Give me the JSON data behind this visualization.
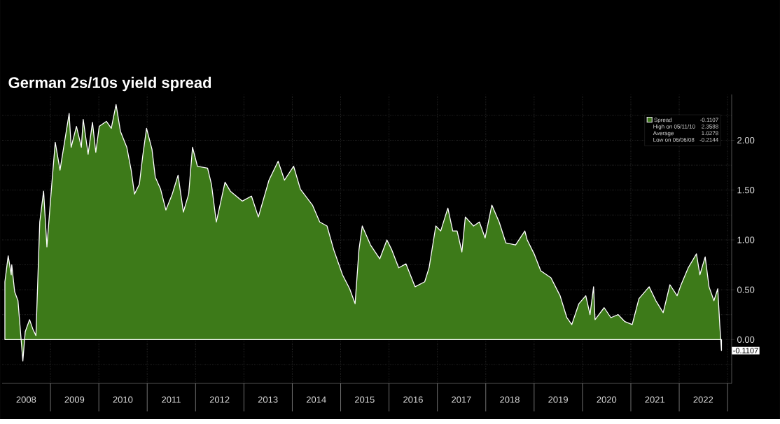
{
  "chart_data": {
    "type": "area",
    "title": "German 2s/10s yield spread",
    "series": [
      {
        "name": "Spread",
        "color": "#3d7a19",
        "x": [
          "2008-01-22",
          "2008-02-16",
          "2008-03-10",
          "2008-03-14",
          "2008-04-05",
          "2008-04-30",
          "2008-06-06",
          "2008-06-24",
          "2008-07-27",
          "2008-08-22",
          "2008-09-13",
          "2008-10-12",
          "2008-11-10",
          "2008-12-05",
          "2009-01-11",
          "2009-02-06",
          "2009-03-14",
          "2009-05-22",
          "2009-06-06",
          "2009-07-16",
          "2009-08-22",
          "2009-09-05",
          "2009-10-12",
          "2009-11-14",
          "2009-12-09",
          "2010-01-04",
          "2010-02-27",
          "2010-04-05",
          "2010-05-11",
          "2010-06-13",
          "2010-07-31",
          "2010-09-02",
          "2010-09-27",
          "2010-11-03",
          "2010-11-28",
          "2010-12-27",
          "2011-02-06",
          "2011-03-03",
          "2011-04-12",
          "2011-05-22",
          "2011-07-09",
          "2011-08-22",
          "2011-10-01",
          "2011-11-10",
          "2011-12-09",
          "2012-01-15",
          "2012-04-01",
          "2012-04-30",
          "2012-06-06",
          "2012-08-11",
          "2012-09-20",
          "2012-12-20",
          "2013-02-27",
          "2013-04-20",
          "2013-07-09",
          "2013-09-16",
          "2013-11-03",
          "2014-01-11",
          "2014-03-03",
          "2014-06-02",
          "2014-07-27",
          "2014-09-20",
          "2014-11-10",
          "2015-01-15",
          "2015-03-10",
          "2015-04-20",
          "2015-05-19",
          "2015-06-13",
          "2015-08-14",
          "2015-10-23",
          "2015-12-16",
          "2016-01-22",
          "2016-03-14",
          "2016-05-08",
          "2016-07-16",
          "2016-09-27",
          "2016-10-30",
          "2016-12-20",
          "2017-01-26",
          "2017-03-21",
          "2017-04-27",
          "2017-05-30",
          "2017-07-05",
          "2017-07-31",
          "2017-10-01",
          "2017-11-14",
          "2017-12-27",
          "2018-02-16",
          "2018-04-12",
          "2018-06-02",
          "2018-08-14",
          "2018-10-23",
          "2018-11-10",
          "2019-01-01",
          "2019-02-20",
          "2019-05-08",
          "2019-07-16",
          "2019-09-05",
          "2019-10-12",
          "2019-12-05",
          "2020-01-26",
          "2020-02-27",
          "2020-03-25",
          "2020-04-05",
          "2020-06-13",
          "2020-08-03",
          "2020-09-27",
          "2020-11-17",
          "2021-01-11",
          "2021-03-03",
          "2021-05-19",
          "2021-07-09",
          "2021-09-02",
          "2021-10-23",
          "2021-12-16",
          "2022-01-15",
          "2022-03-10",
          "2022-05-11",
          "2022-06-06",
          "2022-07-16",
          "2022-08-14",
          "2022-09-20",
          "2022-10-19",
          "2022-11-03",
          "2022-11-16"
        ],
        "values": [
          0.58,
          0.84,
          0.65,
          0.75,
          0.48,
          0.39,
          -0.2144,
          0.08,
          0.2,
          0.1,
          0.04,
          1.18,
          1.49,
          0.93,
          1.56,
          1.98,
          1.7,
          2.27,
          1.93,
          2.14,
          1.93,
          2.21,
          1.86,
          2.18,
          1.88,
          2.14,
          2.19,
          2.12,
          2.3588,
          2.09,
          1.93,
          1.7,
          1.46,
          1.56,
          1.84,
          2.12,
          1.91,
          1.63,
          1.51,
          1.3,
          1.46,
          1.65,
          1.28,
          1.46,
          1.93,
          1.74,
          1.72,
          1.56,
          1.18,
          1.58,
          1.49,
          1.39,
          1.44,
          1.23,
          1.6,
          1.79,
          1.6,
          1.74,
          1.51,
          1.35,
          1.18,
          1.14,
          0.9,
          0.65,
          0.51,
          0.36,
          0.9,
          1.14,
          0.95,
          0.81,
          1.0,
          0.9,
          0.72,
          0.76,
          0.53,
          0.58,
          0.72,
          1.14,
          1.09,
          1.32,
          1.09,
          1.09,
          0.88,
          1.23,
          1.14,
          1.18,
          1.02,
          1.35,
          1.18,
          0.97,
          0.95,
          1.09,
          1.0,
          0.86,
          0.69,
          0.62,
          0.44,
          0.22,
          0.15,
          0.36,
          0.44,
          0.25,
          0.53,
          0.2,
          0.32,
          0.22,
          0.25,
          0.18,
          0.15,
          0.41,
          0.53,
          0.39,
          0.27,
          0.55,
          0.44,
          0.55,
          0.72,
          0.86,
          0.65,
          0.83,
          0.53,
          0.39,
          0.51,
          0.15,
          -0.1107
        ]
      }
    ],
    "xlim": [
      "2008-01-01",
      "2023-02-01"
    ],
    "xticks": [
      {
        "value": "2008-07-01",
        "label": "2008"
      },
      {
        "value": "2009-01-01",
        "label": null
      },
      {
        "value": "2009-07-01",
        "label": "2009"
      },
      {
        "value": "2010-01-01",
        "label": null
      },
      {
        "value": "2010-07-01",
        "label": "2010"
      },
      {
        "value": "2011-01-01",
        "label": null
      },
      {
        "value": "2011-07-01",
        "label": "2011"
      },
      {
        "value": "2012-01-01",
        "label": null
      },
      {
        "value": "2012-07-01",
        "label": "2012"
      },
      {
        "value": "2013-01-01",
        "label": null
      },
      {
        "value": "2013-07-01",
        "label": "2013"
      },
      {
        "value": "2014-01-01",
        "label": null
      },
      {
        "value": "2014-07-01",
        "label": "2014"
      },
      {
        "value": "2015-01-01",
        "label": null
      },
      {
        "value": "2015-07-01",
        "label": "2015"
      },
      {
        "value": "2016-01-01",
        "label": null
      },
      {
        "value": "2016-07-01",
        "label": "2016"
      },
      {
        "value": "2017-01-01",
        "label": null
      },
      {
        "value": "2017-07-01",
        "label": "2017"
      },
      {
        "value": "2018-01-01",
        "label": null
      },
      {
        "value": "2018-07-01",
        "label": "2018"
      },
      {
        "value": "2019-01-01",
        "label": null
      },
      {
        "value": "2019-07-01",
        "label": "2019"
      },
      {
        "value": "2020-01-01",
        "label": null
      },
      {
        "value": "2020-07-01",
        "label": "2020"
      },
      {
        "value": "2021-01-01",
        "label": null
      },
      {
        "value": "2021-07-01",
        "label": "2021"
      },
      {
        "value": "2022-01-01",
        "label": null
      },
      {
        "value": "2022-07-01",
        "label": "2022"
      },
      {
        "value": "2023-01-01",
        "label": null
      }
    ],
    "ylim": [
      -0.44,
      2.46
    ],
    "yticks": [
      {
        "value": -0.25,
        "label": null
      },
      {
        "value": 0,
        "label": "0.00"
      },
      {
        "value": 0.25,
        "label": null
      },
      {
        "value": 0.5,
        "label": "0.50"
      },
      {
        "value": 0.75,
        "label": null
      },
      {
        "value": 1,
        "label": "1.00"
      },
      {
        "value": 1.25,
        "label": null
      },
      {
        "value": 1.5,
        "label": "1.50"
      },
      {
        "value": 1.75,
        "label": null
      },
      {
        "value": 2,
        "label": "2.00"
      },
      {
        "value": 2.25,
        "label": null
      }
    ],
    "grid": true,
    "legend": "top right",
    "annotations": [
      {
        "text": "-0.1107",
        "x": "2022-11-16",
        "y": -0.1107
      },
      "-0.1107",
      "High on 05/11/10",
      "2.3588",
      "Average",
      "1.0278",
      "Low on 06/06/08",
      "-0.2144"
    ]
  }
}
